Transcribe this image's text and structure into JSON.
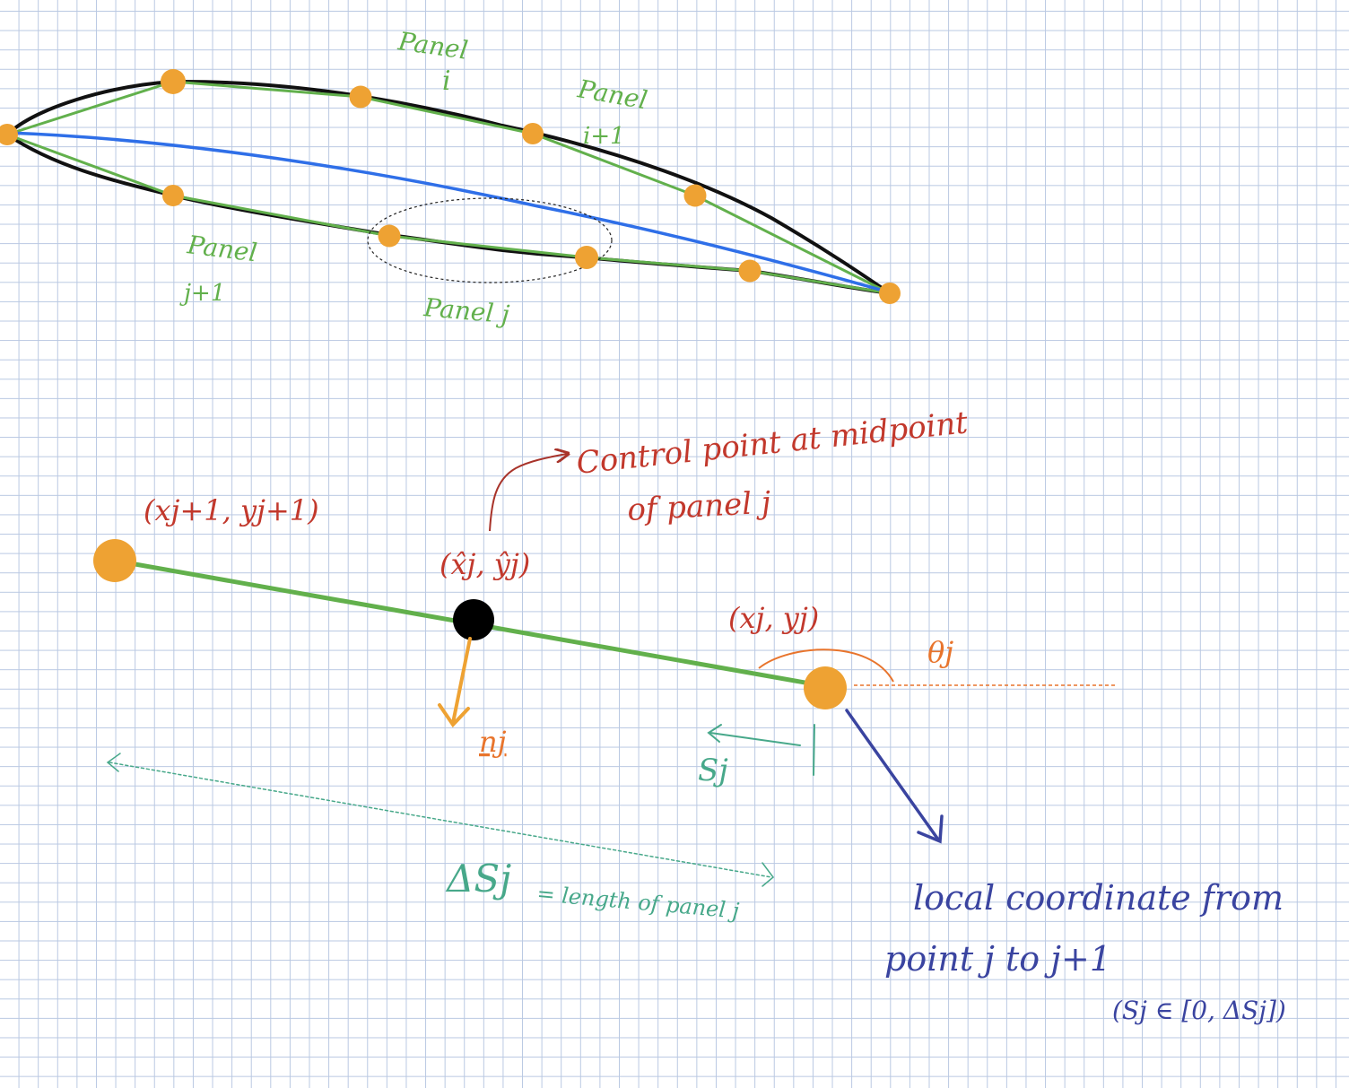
{
  "colors": {
    "grid": "#b9c8e2",
    "airfoil_outline": "#111111",
    "panels": "#62b04c",
    "camber_line": "#2f6fe8",
    "nodes": "#eea233",
    "control_point": "#000000",
    "annotation_red": "#c2382c",
    "theta_orange": "#e8742c",
    "normal_orange": "#eea233",
    "length_teal": "#47a88a",
    "local_coord_indigo": "#3a44a0"
  },
  "airfoil_labels": {
    "panel_i_line1": "Panel",
    "panel_i_line2": "i",
    "panel_i1_line1": "Panel",
    "panel_i1_line2": "i+1",
    "panel_j1_line1": "Panel",
    "panel_j1_line2": "j+1",
    "panel_j": "Panel j"
  },
  "detail": {
    "control_point_line1": "Control point at midpoint",
    "control_point_line2": "of panel j",
    "point_j_plus_1": "(xj+1, yj+1)",
    "control_point_coords": "(x̂j, ŷj)",
    "point_j": "(xj, yj)",
    "theta": "θj",
    "normal": "nj",
    "s_local": "Sj",
    "delta_s_symbol": "ΔSj",
    "delta_s_text": "= length of panel j",
    "local_coord_line1": "local coordinate from",
    "local_coord_line2": "point j to j+1",
    "local_coord_range": "(Sj ∈ [0, ΔSj])"
  }
}
